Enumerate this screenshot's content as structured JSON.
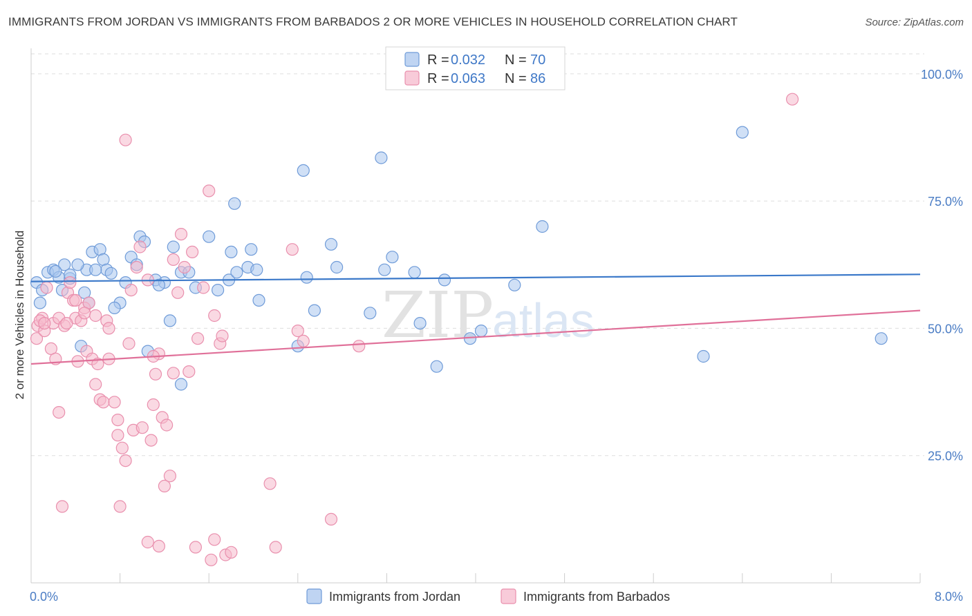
{
  "title": "IMMIGRANTS FROM JORDAN VS IMMIGRANTS FROM BARBADOS 2 OR MORE VEHICLES IN HOUSEHOLD CORRELATION CHART",
  "source": "Source: ZipAtlas.com",
  "watermark": {
    "zip": "ZIP",
    "atlas": "atlas"
  },
  "colors": {
    "jordan_fill": "#a9c6ee",
    "jordan_stroke": "#6f9bd8",
    "jordan_line": "#3a78c9",
    "barbados_fill": "#f6b9cc",
    "barbados_stroke": "#e98fad",
    "barbados_line": "#e07099",
    "tick": "#4a7cc4",
    "grid": "#dddddd"
  },
  "legend": {
    "jordan": {
      "r_label": "R = ",
      "r_value": "0.032",
      "n_label": "N = ",
      "n_value": "70"
    },
    "barbados": {
      "r_label": "R = ",
      "r_value": "0.063",
      "n_label": "N = ",
      "n_value": "86"
    }
  },
  "chart_data": {
    "type": "scatter",
    "title": "IMMIGRANTS FROM JORDAN VS IMMIGRANTS FROM BARBADOS 2 OR MORE VEHICLES IN HOUSEHOLD CORRELATION CHART",
    "xlabel": "",
    "ylabel": "2 or more Vehicles in Household",
    "xlim": [
      0,
      8
    ],
    "ylim": [
      0,
      105
    ],
    "x_tick_labels": {
      "left": "0.0%",
      "right": "8.0%"
    },
    "y_ticks": [
      {
        "value": 25,
        "label": "25.0%"
      },
      {
        "value": 50,
        "label": "50.0%"
      },
      {
        "value": 75,
        "label": "75.0%"
      },
      {
        "value": 100,
        "label": "100.0%"
      }
    ],
    "grid": true,
    "legend_position": "top-center",
    "series": [
      {
        "name": "Immigrants from Jordan",
        "trend": {
          "x": [
            0,
            8
          ],
          "y": [
            59.2,
            60.6
          ]
        },
        "points": [
          [
            0.05,
            59
          ],
          [
            0.1,
            57.5
          ],
          [
            0.15,
            61
          ],
          [
            0.2,
            61.5
          ],
          [
            0.25,
            60
          ],
          [
            0.3,
            62.5
          ],
          [
            0.35,
            59.8
          ],
          [
            0.08,
            55
          ],
          [
            0.28,
            57.5
          ],
          [
            0.48,
            57
          ],
          [
            0.5,
            61.5
          ],
          [
            0.55,
            65
          ],
          [
            0.62,
            65.5
          ],
          [
            0.65,
            63.5
          ],
          [
            0.68,
            61.5
          ],
          [
            0.52,
            55
          ],
          [
            0.8,
            55
          ],
          [
            0.75,
            54
          ],
          [
            0.85,
            59
          ],
          [
            0.9,
            64
          ],
          [
            0.95,
            62.5
          ],
          [
            0.98,
            68
          ],
          [
            1.02,
            67
          ],
          [
            1.12,
            59.5
          ],
          [
            1.2,
            59
          ],
          [
            1.28,
            66
          ],
          [
            1.35,
            61
          ],
          [
            1.42,
            61
          ],
          [
            1.48,
            58
          ],
          [
            1.6,
            68
          ],
          [
            1.68,
            57.5
          ],
          [
            1.78,
            59.5
          ],
          [
            1.8,
            65
          ],
          [
            1.83,
            74.5
          ],
          [
            1.95,
            62
          ],
          [
            1.98,
            65.5
          ],
          [
            2.03,
            61.5
          ],
          [
            2.05,
            55.5
          ],
          [
            1.25,
            51.5
          ],
          [
            1.35,
            39
          ],
          [
            1.05,
            45.5
          ],
          [
            0.45,
            46.5
          ],
          [
            2.4,
            46.5
          ],
          [
            2.45,
            81
          ],
          [
            2.48,
            60
          ],
          [
            2.55,
            53.5
          ],
          [
            2.7,
            66.5
          ],
          [
            2.75,
            62
          ],
          [
            3.05,
            53
          ],
          [
            3.15,
            83.5
          ],
          [
            3.18,
            61.5
          ],
          [
            3.25,
            64
          ],
          [
            3.45,
            61
          ],
          [
            3.5,
            51
          ],
          [
            3.65,
            42.5
          ],
          [
            3.72,
            59.5
          ],
          [
            3.95,
            48
          ],
          [
            4.05,
            49.5
          ],
          [
            4.35,
            58.5
          ],
          [
            4.6,
            70
          ],
          [
            6.05,
            44.5
          ],
          [
            6.4,
            88.5
          ],
          [
            7.65,
            48
          ],
          [
            1.85,
            61
          ],
          [
            0.35,
            60.5
          ],
          [
            0.58,
            61.5
          ],
          [
            1.15,
            58.5
          ],
          [
            0.22,
            61.2
          ],
          [
            0.42,
            62.5
          ],
          [
            0.72,
            60.8
          ]
        ]
      },
      {
        "name": "Immigrants from Barbados",
        "trend": {
          "x": [
            0,
            8
          ],
          "y": [
            43,
            53.5
          ]
        },
        "points": [
          [
            0.05,
            48
          ],
          [
            0.06,
            50.5
          ],
          [
            0.1,
            52
          ],
          [
            0.12,
            49.5
          ],
          [
            0.14,
            58
          ],
          [
            0.18,
            46
          ],
          [
            0.2,
            51
          ],
          [
            0.22,
            44
          ],
          [
            0.25,
            52
          ],
          [
            0.3,
            50.5
          ],
          [
            0.33,
            57
          ],
          [
            0.35,
            59
          ],
          [
            0.38,
            55.5
          ],
          [
            0.4,
            52
          ],
          [
            0.42,
            43.5
          ],
          [
            0.45,
            51.5
          ],
          [
            0.48,
            54
          ],
          [
            0.5,
            45.5
          ],
          [
            0.52,
            55
          ],
          [
            0.55,
            44
          ],
          [
            0.58,
            39
          ],
          [
            0.6,
            43
          ],
          [
            0.62,
            36
          ],
          [
            0.65,
            35.5
          ],
          [
            0.68,
            51.5
          ],
          [
            0.7,
            50
          ],
          [
            0.75,
            35.5
          ],
          [
            0.78,
            29
          ],
          [
            0.82,
            26.5
          ],
          [
            0.85,
            24
          ],
          [
            0.88,
            47
          ],
          [
            0.9,
            57.5
          ],
          [
            0.92,
            30
          ],
          [
            0.95,
            62
          ],
          [
            0.98,
            66
          ],
          [
            1.0,
            30.5
          ],
          [
            1.05,
            59.5
          ],
          [
            1.08,
            28
          ],
          [
            1.1,
            35
          ],
          [
            1.12,
            41
          ],
          [
            1.15,
            45
          ],
          [
            1.18,
            32.5
          ],
          [
            1.2,
            19
          ],
          [
            1.22,
            31
          ],
          [
            1.25,
            21
          ],
          [
            1.28,
            63.5
          ],
          [
            1.32,
            57
          ],
          [
            1.35,
            68.5
          ],
          [
            1.38,
            62
          ],
          [
            1.42,
            41.5
          ],
          [
            1.45,
            65
          ],
          [
            1.5,
            48
          ],
          [
            1.55,
            58
          ],
          [
            1.6,
            77
          ],
          [
            1.65,
            52.5
          ],
          [
            1.7,
            47
          ],
          [
            1.72,
            48.5
          ],
          [
            2.15,
            19.5
          ],
          [
            2.2,
            7
          ],
          [
            0.25,
            33.5
          ],
          [
            0.28,
            15
          ],
          [
            0.85,
            87
          ],
          [
            0.8,
            15
          ],
          [
            1.05,
            8
          ],
          [
            1.15,
            7.2
          ],
          [
            1.48,
            7
          ],
          [
            1.62,
            4.5
          ],
          [
            1.65,
            8.5
          ],
          [
            1.75,
            5.5
          ],
          [
            1.8,
            6
          ],
          [
            2.35,
            65.5
          ],
          [
            2.4,
            49.5
          ],
          [
            2.45,
            47.5
          ],
          [
            2.7,
            12.5
          ],
          [
            2.95,
            46.5
          ],
          [
            6.85,
            95
          ],
          [
            0.08,
            51.5
          ],
          [
            0.12,
            51
          ],
          [
            0.32,
            51
          ],
          [
            0.48,
            53
          ],
          [
            0.58,
            52.5
          ],
          [
            0.7,
            44
          ],
          [
            0.4,
            55.5
          ],
          [
            0.78,
            32
          ],
          [
            1.1,
            44.5
          ],
          [
            1.28,
            41.2
          ]
        ]
      }
    ]
  },
  "bottom_legend": {
    "jordan_label": "Immigrants from Jordan",
    "barbados_label": "Immigrants from Barbados"
  }
}
